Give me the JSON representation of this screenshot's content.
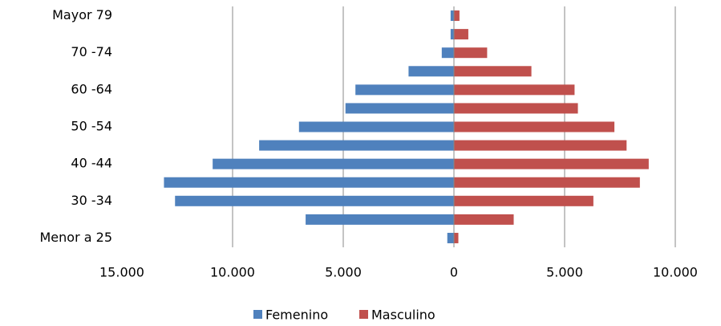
{
  "chart_data": {
    "type": "bar",
    "orientation": "horizontal",
    "stacked_diverging": true,
    "categories": [
      "Menor a 25",
      null,
      "30 -34",
      null,
      "40 -44",
      null,
      "50 -54",
      null,
      "60 -64",
      null,
      "70 -74",
      null,
      "Mayor 79"
    ],
    "series": [
      {
        "name": "Femenino",
        "color": "#4f81bd",
        "values": [
          -300,
          -6700,
          -12600,
          -13100,
          -10900,
          -8800,
          -7000,
          -4900,
          -4450,
          -2050,
          -550,
          -150,
          -150
        ]
      },
      {
        "name": "Masculino",
        "color": "#c0504d",
        "values": [
          200,
          2700,
          6300,
          8400,
          8800,
          7800,
          7250,
          5600,
          5450,
          3500,
          1500,
          650,
          250
        ]
      }
    ],
    "xlim": [
      -15000,
      10000
    ],
    "xticks": [
      {
        "value": -15000,
        "label": "15.000"
      },
      {
        "value": -10000,
        "label": "10.000"
      },
      {
        "value": -5000,
        "label": "5.000"
      },
      0,
      {
        "value": 5000,
        "label": "5.000"
      },
      {
        "value": 10000,
        "label": "10.000"
      }
    ],
    "grid": true,
    "legend": "bottom"
  }
}
